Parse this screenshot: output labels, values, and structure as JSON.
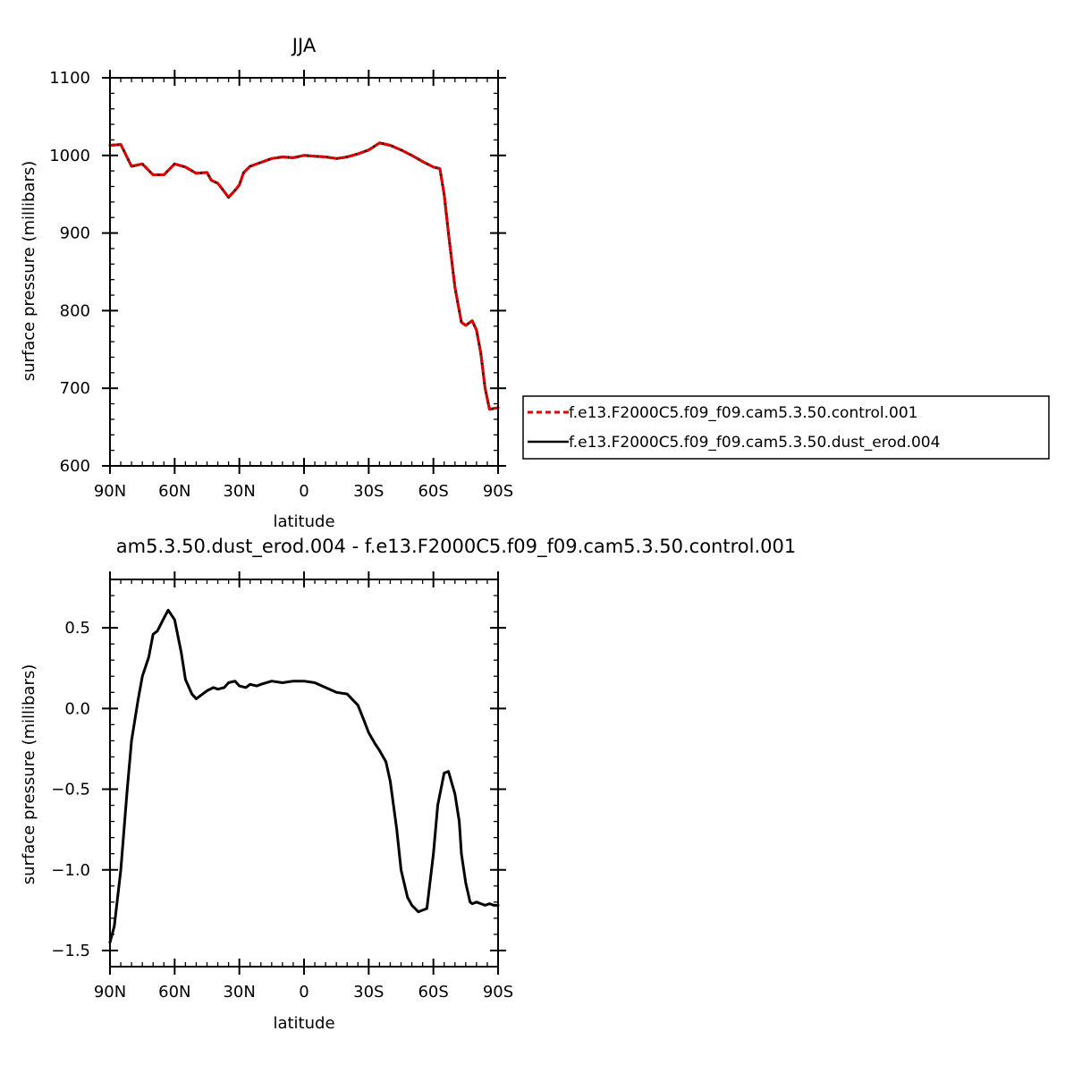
{
  "chart_data": [
    {
      "type": "line",
      "title": "JJA",
      "xlabel": "latitude",
      "ylabel": "surface pressure (millibars)",
      "xlim": [
        -90,
        90
      ],
      "x_direction": "north-to-south",
      "ylim": [
        600,
        1100
      ],
      "xticks": [
        {
          "value": -90,
          "label": "90N"
        },
        {
          "value": -60,
          "label": "60N"
        },
        {
          "value": -30,
          "label": "30N"
        },
        {
          "value": 0,
          "label": "0"
        },
        {
          "value": 30,
          "label": "30S"
        },
        {
          "value": 60,
          "label": "60S"
        },
        {
          "value": 90,
          "label": "90S"
        }
      ],
      "yticks": [
        {
          "value": 600,
          "label": "600"
        },
        {
          "value": 700,
          "label": "700"
        },
        {
          "value": 800,
          "label": "800"
        },
        {
          "value": 900,
          "label": "900"
        },
        {
          "value": 1000,
          "label": "1000"
        },
        {
          "value": 1100,
          "label": "1100"
        }
      ],
      "grid": false,
      "legend": {
        "placement": "right",
        "entries": [
          {
            "name": "f.e13.F2000C5.f09_f09.cam5.3.50.control.001",
            "color": "#e00000",
            "dash": "dashed"
          },
          {
            "name": "f.e13.F2000C5.f09_f09.cam5.3.50.dust_erod.004",
            "color": "#000000",
            "dash": "solid"
          }
        ]
      },
      "series": [
        {
          "name": "f.e13.F2000C5.f09_f09.cam5.3.50.control.001",
          "color": "#e00000",
          "style": "dashed",
          "x": [
            -90,
            -85,
            -80,
            -75,
            -70,
            -65,
            -60,
            -55,
            -50,
            -45,
            -43,
            -40,
            -38,
            -35,
            -32,
            -30,
            -28,
            -25,
            -20,
            -15,
            -10,
            -5,
            0,
            5,
            10,
            15,
            20,
            25,
            30,
            35,
            40,
            45,
            50,
            55,
            60,
            63,
            65,
            67,
            70,
            73,
            75,
            78,
            80,
            82,
            84,
            86,
            88,
            90
          ],
          "y": [
            1013,
            1014,
            986,
            989,
            975,
            975,
            989,
            985,
            977,
            978,
            968,
            964,
            957,
            946,
            955,
            962,
            978,
            986,
            991,
            996,
            998,
            997,
            1000,
            999,
            998,
            996,
            998,
            1002,
            1007,
            1016,
            1013,
            1007,
            1000,
            992,
            985,
            983,
            950,
            900,
            830,
            785,
            781,
            787,
            775,
            745,
            700,
            673,
            674,
            675
          ]
        },
        {
          "name": "f.e13.F2000C5.f09_f09.cam5.3.50.dust_erod.004",
          "color": "#000000",
          "style": "solid",
          "x": [
            -90,
            -85,
            -80,
            -75,
            -70,
            -65,
            -60,
            -55,
            -50,
            -45,
            -43,
            -40,
            -38,
            -35,
            -32,
            -30,
            -28,
            -25,
            -20,
            -15,
            -10,
            -5,
            0,
            5,
            10,
            15,
            20,
            25,
            30,
            35,
            40,
            45,
            50,
            55,
            60,
            63,
            65,
            67,
            70,
            73,
            75,
            78,
            80,
            82,
            84,
            86,
            88,
            90
          ],
          "y": [
            1013,
            1014,
            986,
            989,
            975,
            975,
            989,
            985,
            977,
            978,
            968,
            964,
            957,
            946,
            955,
            962,
            978,
            986,
            991,
            996,
            998,
            997,
            1000,
            999,
            998,
            996,
            998,
            1002,
            1007,
            1016,
            1013,
            1007,
            1000,
            992,
            985,
            983,
            950,
            900,
            830,
            785,
            781,
            787,
            775,
            745,
            700,
            673,
            674,
            675
          ]
        }
      ]
    },
    {
      "type": "line",
      "title": "am5.3.50.dust_erod.004 - f.e13.F2000C5.f09_f09.cam5.3.50.control.001",
      "xlabel": "latitude",
      "ylabel": "surface pressure (millibars)",
      "xlim": [
        -90,
        90
      ],
      "x_direction": "north-to-south",
      "ylim": [
        -1.6,
        0.8
      ],
      "xticks": [
        {
          "value": -90,
          "label": "90N"
        },
        {
          "value": -60,
          "label": "60N"
        },
        {
          "value": -30,
          "label": "30N"
        },
        {
          "value": 0,
          "label": "0"
        },
        {
          "value": 30,
          "label": "30S"
        },
        {
          "value": 60,
          "label": "60S"
        },
        {
          "value": 90,
          "label": "90S"
        }
      ],
      "yticks": [
        {
          "value": 0.5,
          "label": "0.5"
        },
        {
          "value": 0.0,
          "label": "0.0"
        },
        {
          "value": -0.5,
          "label": "−0.5"
        },
        {
          "value": -1.0,
          "label": "−1.0"
        },
        {
          "value": -1.5,
          "label": "−1.5"
        }
      ],
      "grid": false,
      "series": [
        {
          "color": "#000000",
          "style": "solid",
          "x": [
            -90,
            -88,
            -85,
            -82,
            -80,
            -77,
            -75,
            -72,
            -70,
            -68,
            -65,
            -63,
            -60,
            -57,
            -55,
            -52,
            -50,
            -47,
            -45,
            -42,
            -40,
            -37,
            -35,
            -32,
            -30,
            -27,
            -25,
            -22,
            -20,
            -15,
            -10,
            -5,
            0,
            5,
            10,
            15,
            20,
            25,
            28,
            30,
            33,
            35,
            38,
            40,
            43,
            45,
            48,
            50,
            53,
            55,
            57,
            60,
            62,
            65,
            67,
            70,
            72,
            73,
            75,
            77,
            78,
            80,
            82,
            84,
            86,
            88,
            90
          ],
          "y": [
            -1.45,
            -1.35,
            -1.0,
            -0.5,
            -0.2,
            0.05,
            0.2,
            0.32,
            0.46,
            0.48,
            0.56,
            0.61,
            0.55,
            0.35,
            0.18,
            0.09,
            0.06,
            0.09,
            0.11,
            0.13,
            0.12,
            0.13,
            0.16,
            0.17,
            0.14,
            0.13,
            0.15,
            0.14,
            0.15,
            0.17,
            0.16,
            0.17,
            0.17,
            0.16,
            0.13,
            0.1,
            0.09,
            0.02,
            -0.08,
            -0.15,
            -0.22,
            -0.26,
            -0.33,
            -0.45,
            -0.75,
            -1.0,
            -1.17,
            -1.22,
            -1.26,
            -1.25,
            -1.24,
            -0.9,
            -0.6,
            -0.4,
            -0.39,
            -0.53,
            -0.7,
            -0.9,
            -1.08,
            -1.2,
            -1.21,
            -1.2,
            -1.21,
            -1.22,
            -1.21,
            -1.22,
            -1.22
          ]
        }
      ]
    }
  ]
}
